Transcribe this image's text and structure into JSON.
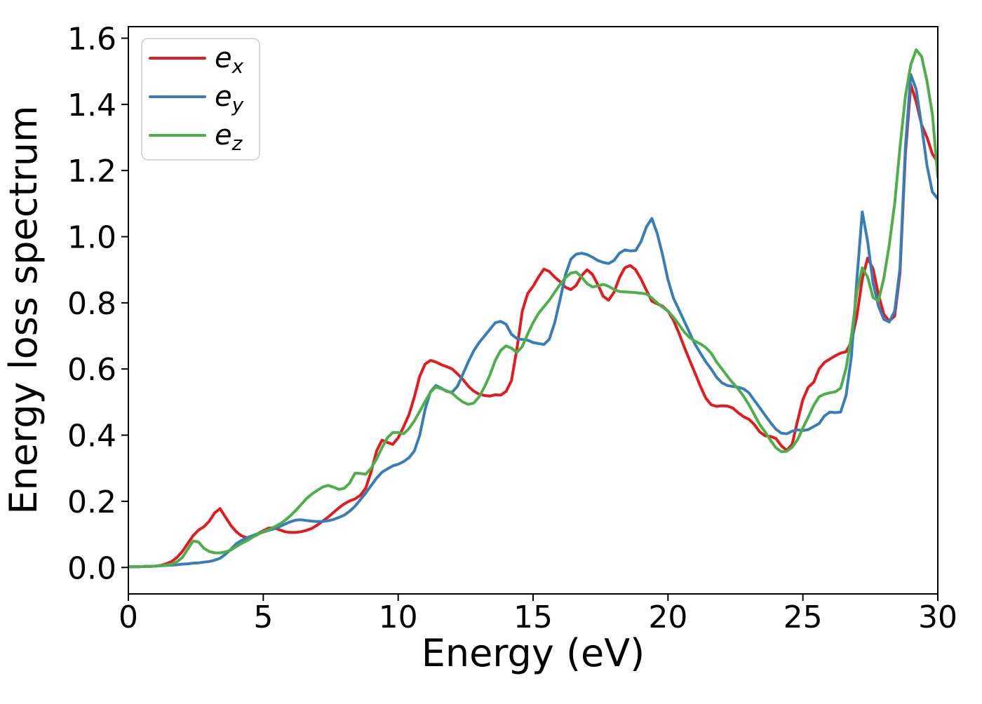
{
  "figure": {
    "background": "#ffffff"
  },
  "chart_data": {
    "type": "line",
    "title": "",
    "xlabel": "Energy (eV)",
    "ylabel": "Energy loss spectrum",
    "xlim": [
      0,
      30
    ],
    "ylim": [
      -0.08,
      1.635
    ],
    "grid": false,
    "x_ticks": [
      0,
      5,
      10,
      15,
      20,
      25,
      30
    ],
    "x_tick_labels": [
      "0",
      "5",
      "10",
      "15",
      "20",
      "25",
      "30"
    ],
    "y_ticks": [
      0.0,
      0.2,
      0.4,
      0.6,
      0.8,
      1.0,
      1.2,
      1.4,
      1.6
    ],
    "y_tick_labels": [
      "0.0",
      "0.2",
      "0.4",
      "0.6",
      "0.8",
      "1.0",
      "1.2",
      "1.4",
      "1.6"
    ],
    "legend": {
      "position": "upper left",
      "entries": [
        {
          "name": "e_x",
          "label_base": "e",
          "label_sub": "x",
          "color": "#e41a1c"
        },
        {
          "name": "e_y",
          "label_base": "e",
          "label_sub": "y",
          "color": "#377eb8"
        },
        {
          "name": "e_z",
          "label_base": "e",
          "label_sub": "z",
          "color": "#4daf4a"
        }
      ]
    },
    "x": [
      0.0,
      0.2,
      0.4,
      0.6,
      0.8,
      1.0,
      1.2,
      1.4,
      1.6,
      1.8,
      2.0,
      2.2,
      2.4,
      2.6,
      2.8,
      3.0,
      3.2,
      3.4,
      3.6,
      3.8,
      4.0,
      4.2,
      4.4,
      4.6,
      4.8,
      5.0,
      5.2,
      5.4,
      5.6,
      5.8,
      6.0,
      6.2,
      6.4,
      6.6,
      6.8,
      7.0,
      7.2,
      7.4,
      7.6,
      7.8,
      8.0,
      8.2,
      8.4,
      8.6,
      8.8,
      9.0,
      9.2,
      9.4,
      9.6,
      9.8,
      10.0,
      10.2,
      10.4,
      10.6,
      10.8,
      11.0,
      11.2,
      11.4,
      11.6,
      11.8,
      12.0,
      12.2,
      12.4,
      12.6,
      12.8,
      13.0,
      13.2,
      13.4,
      13.6,
      13.8,
      14.0,
      14.2,
      14.4,
      14.6,
      14.8,
      15.0,
      15.2,
      15.4,
      15.6,
      15.8,
      16.0,
      16.2,
      16.4,
      16.6,
      16.8,
      17.0,
      17.2,
      17.4,
      17.6,
      17.8,
      18.0,
      18.2,
      18.4,
      18.6,
      18.8,
      19.0,
      19.2,
      19.4,
      19.6,
      19.8,
      20.0,
      20.2,
      20.4,
      20.6,
      20.8,
      21.0,
      21.2,
      21.4,
      21.6,
      21.8,
      22.0,
      22.2,
      22.4,
      22.6,
      22.8,
      23.0,
      23.2,
      23.4,
      23.6,
      23.8,
      24.0,
      24.2,
      24.4,
      24.6,
      24.8,
      25.0,
      25.2,
      25.4,
      25.6,
      25.8,
      26.0,
      26.2,
      26.4,
      26.6,
      26.8,
      27.0,
      27.2,
      27.4,
      27.6,
      27.8,
      28.0,
      28.2,
      28.4,
      28.6,
      28.8,
      29.0,
      29.2,
      29.4,
      29.6,
      29.8,
      30.0
    ],
    "series": [
      {
        "name": "e_x",
        "color": "#e41a1c",
        "values": [
          0.002,
          0.002,
          0.002,
          0.003,
          0.003,
          0.004,
          0.006,
          0.011,
          0.018,
          0.03,
          0.048,
          0.072,
          0.096,
          0.113,
          0.123,
          0.14,
          0.165,
          0.178,
          0.152,
          0.127,
          0.108,
          0.095,
          0.09,
          0.094,
          0.102,
          0.111,
          0.119,
          0.12,
          0.114,
          0.108,
          0.106,
          0.106,
          0.108,
          0.112,
          0.118,
          0.128,
          0.14,
          0.152,
          0.166,
          0.18,
          0.192,
          0.201,
          0.207,
          0.218,
          0.24,
          0.29,
          0.352,
          0.385,
          0.378,
          0.372,
          0.392,
          0.425,
          0.462,
          0.515,
          0.578,
          0.615,
          0.626,
          0.621,
          0.613,
          0.607,
          0.6,
          0.585,
          0.568,
          0.548,
          0.533,
          0.524,
          0.52,
          0.518,
          0.522,
          0.521,
          0.532,
          0.565,
          0.66,
          0.775,
          0.828,
          0.85,
          0.878,
          0.902,
          0.895,
          0.878,
          0.864,
          0.847,
          0.84,
          0.853,
          0.882,
          0.9,
          0.886,
          0.855,
          0.82,
          0.808,
          0.832,
          0.876,
          0.906,
          0.913,
          0.9,
          0.872,
          0.838,
          0.805,
          0.797,
          0.79,
          0.775,
          0.748,
          0.71,
          0.667,
          0.627,
          0.588,
          0.548,
          0.512,
          0.492,
          0.487,
          0.489,
          0.488,
          0.482,
          0.468,
          0.456,
          0.448,
          0.432,
          0.41,
          0.398,
          0.396,
          0.39,
          0.368,
          0.354,
          0.372,
          0.443,
          0.508,
          0.545,
          0.56,
          0.6,
          0.62,
          0.63,
          0.64,
          0.648,
          0.652,
          0.682,
          0.76,
          0.872,
          0.935,
          0.903,
          0.825,
          0.765,
          0.745,
          0.76,
          0.89,
          1.25,
          1.46,
          1.408,
          1.338,
          1.3,
          1.25,
          1.225
        ]
      },
      {
        "name": "e_y",
        "color": "#377eb8",
        "values": [
          0.002,
          0.002,
          0.002,
          0.003,
          0.003,
          0.004,
          0.005,
          0.006,
          0.007,
          0.008,
          0.01,
          0.011,
          0.013,
          0.014,
          0.016,
          0.018,
          0.022,
          0.028,
          0.04,
          0.055,
          0.072,
          0.082,
          0.09,
          0.096,
          0.102,
          0.107,
          0.112,
          0.117,
          0.123,
          0.131,
          0.138,
          0.143,
          0.144,
          0.142,
          0.14,
          0.139,
          0.139,
          0.141,
          0.145,
          0.151,
          0.158,
          0.17,
          0.185,
          0.205,
          0.225,
          0.248,
          0.27,
          0.288,
          0.298,
          0.307,
          0.312,
          0.32,
          0.332,
          0.352,
          0.4,
          0.478,
          0.532,
          0.55,
          0.542,
          0.532,
          0.53,
          0.548,
          0.585,
          0.622,
          0.655,
          0.68,
          0.7,
          0.72,
          0.74,
          0.744,
          0.735,
          0.705,
          0.692,
          0.689,
          0.687,
          0.68,
          0.677,
          0.674,
          0.69,
          0.74,
          0.81,
          0.885,
          0.932,
          0.947,
          0.95,
          0.946,
          0.938,
          0.928,
          0.922,
          0.919,
          0.928,
          0.95,
          0.96,
          0.957,
          0.958,
          0.985,
          1.03,
          1.055,
          1.01,
          0.945,
          0.87,
          0.815,
          0.78,
          0.745,
          0.71,
          0.675,
          0.648,
          0.622,
          0.6,
          0.575,
          0.558,
          0.55,
          0.547,
          0.545,
          0.54,
          0.528,
          0.505,
          0.483,
          0.46,
          0.438,
          0.418,
          0.406,
          0.404,
          0.412,
          0.416,
          0.414,
          0.417,
          0.426,
          0.435,
          0.458,
          0.47,
          0.468,
          0.47,
          0.52,
          0.64,
          0.87,
          1.075,
          0.985,
          0.86,
          0.79,
          0.75,
          0.742,
          0.775,
          0.905,
          1.27,
          1.49,
          1.445,
          1.335,
          1.215,
          1.135,
          1.115
        ]
      },
      {
        "name": "e_z",
        "color": "#4daf4a",
        "values": [
          0.002,
          0.002,
          0.002,
          0.003,
          0.003,
          0.004,
          0.005,
          0.007,
          0.01,
          0.017,
          0.03,
          0.055,
          0.08,
          0.077,
          0.058,
          0.048,
          0.044,
          0.044,
          0.047,
          0.053,
          0.063,
          0.073,
          0.081,
          0.091,
          0.1,
          0.108,
          0.114,
          0.122,
          0.131,
          0.142,
          0.156,
          0.172,
          0.19,
          0.208,
          0.222,
          0.233,
          0.243,
          0.248,
          0.243,
          0.236,
          0.239,
          0.255,
          0.285,
          0.284,
          0.282,
          0.3,
          0.328,
          0.362,
          0.392,
          0.408,
          0.408,
          0.404,
          0.42,
          0.443,
          0.472,
          0.502,
          0.53,
          0.546,
          0.54,
          0.534,
          0.527,
          0.512,
          0.5,
          0.493,
          0.497,
          0.516,
          0.546,
          0.582,
          0.626,
          0.656,
          0.67,
          0.663,
          0.65,
          0.668,
          0.706,
          0.74,
          0.768,
          0.788,
          0.808,
          0.832,
          0.856,
          0.876,
          0.89,
          0.893,
          0.878,
          0.858,
          0.848,
          0.851,
          0.856,
          0.85,
          0.84,
          0.834,
          0.833,
          0.832,
          0.831,
          0.829,
          0.827,
          0.815,
          0.8,
          0.787,
          0.775,
          0.757,
          0.735,
          0.712,
          0.695,
          0.684,
          0.676,
          0.665,
          0.648,
          0.621,
          0.6,
          0.578,
          0.558,
          0.54,
          0.518,
          0.492,
          0.462,
          0.432,
          0.41,
          0.384,
          0.362,
          0.35,
          0.351,
          0.363,
          0.386,
          0.422,
          0.455,
          0.49,
          0.516,
          0.524,
          0.528,
          0.531,
          0.542,
          0.602,
          0.7,
          0.832,
          0.906,
          0.878,
          0.816,
          0.806,
          0.875,
          0.975,
          1.1,
          1.27,
          1.425,
          1.52,
          1.565,
          1.545,
          1.47,
          1.37,
          1.18
        ]
      }
    ]
  }
}
